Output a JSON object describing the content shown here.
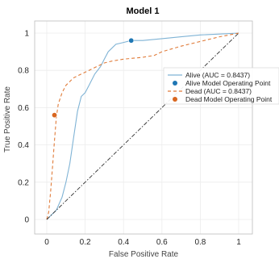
{
  "chart_data": {
    "type": "line",
    "title": "Model 1",
    "xlabel": "False Positive Rate",
    "ylabel": "True Positive Rate",
    "xlim": [
      0,
      1
    ],
    "ylim": [
      0,
      1
    ],
    "x_ticks": [
      "0",
      "0.2",
      "0.4",
      "0.6",
      "0.8",
      "1"
    ],
    "y_ticks": [
      "0",
      "0.2",
      "0.4",
      "0.6",
      "0.8",
      "1"
    ],
    "grid": true,
    "legend_position": "right",
    "series": [
      {
        "name": "Alive (AUC = 0.8437)",
        "color": "#7fb3d5",
        "style": "solid",
        "points": [
          [
            0,
            0
          ],
          [
            0.02,
            0.02
          ],
          [
            0.05,
            0.05
          ],
          [
            0.08,
            0.12
          ],
          [
            0.1,
            0.2
          ],
          [
            0.12,
            0.3
          ],
          [
            0.14,
            0.44
          ],
          [
            0.16,
            0.58
          ],
          [
            0.18,
            0.66
          ],
          [
            0.2,
            0.68
          ],
          [
            0.22,
            0.72
          ],
          [
            0.25,
            0.78
          ],
          [
            0.28,
            0.82
          ],
          [
            0.3,
            0.86
          ],
          [
            0.32,
            0.9
          ],
          [
            0.36,
            0.94
          ],
          [
            0.4,
            0.95
          ],
          [
            0.44,
            0.96
          ],
          [
            0.5,
            0.96
          ],
          [
            0.6,
            0.97
          ],
          [
            0.7,
            0.98
          ],
          [
            0.8,
            0.99
          ],
          [
            0.9,
            0.995
          ],
          [
            1,
            1
          ]
        ]
      },
      {
        "name": "Dead (AUC = 0.8437)",
        "color": "#e07b39",
        "style": "dashed",
        "points": [
          [
            0,
            0
          ],
          [
            0.01,
            0.04
          ],
          [
            0.02,
            0.15
          ],
          [
            0.03,
            0.28
          ],
          [
            0.04,
            0.42
          ],
          [
            0.05,
            0.55
          ],
          [
            0.06,
            0.62
          ],
          [
            0.08,
            0.68
          ],
          [
            0.1,
            0.72
          ],
          [
            0.14,
            0.76
          ],
          [
            0.18,
            0.78
          ],
          [
            0.22,
            0.8
          ],
          [
            0.26,
            0.82
          ],
          [
            0.3,
            0.84
          ],
          [
            0.34,
            0.85
          ],
          [
            0.4,
            0.86
          ],
          [
            0.5,
            0.87
          ],
          [
            0.56,
            0.88
          ],
          [
            0.6,
            0.9
          ],
          [
            0.7,
            0.93
          ],
          [
            0.8,
            0.955
          ],
          [
            0.9,
            0.98
          ],
          [
            1,
            1
          ]
        ]
      },
      {
        "name": "",
        "color": "#333333",
        "style": "dashdot",
        "points": [
          [
            0,
            0
          ],
          [
            1,
            1
          ]
        ]
      }
    ],
    "operating_points": [
      {
        "name": "Alive Model Operating Point",
        "x": 0.44,
        "y": 0.96,
        "color": "#1f77b4"
      },
      {
        "name": "Dead Model Operating Point",
        "x": 0.04,
        "y": 0.56,
        "color": "#d9661f"
      }
    ]
  }
}
